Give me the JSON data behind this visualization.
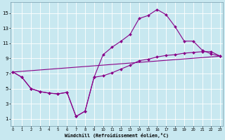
{
  "xlabel": "Windchill (Refroidissement éolien,°C)",
  "background_color": "#c8e8f0",
  "line_color": "#880088",
  "xlim": [
    -0.3,
    23.3
  ],
  "ylim": [
    0,
    16.5
  ],
  "xticks": [
    0,
    1,
    2,
    3,
    4,
    5,
    6,
    7,
    8,
    9,
    10,
    11,
    12,
    13,
    14,
    15,
    16,
    17,
    18,
    19,
    20,
    21,
    22,
    23
  ],
  "yticks": [
    1,
    3,
    5,
    7,
    9,
    11,
    13,
    15
  ],
  "line1_x": [
    0,
    1,
    2,
    3,
    4,
    5,
    6,
    7,
    8,
    9,
    10,
    11,
    12,
    13,
    14,
    15,
    16,
    17,
    18,
    19,
    20,
    21,
    22,
    23
  ],
  "line1_y": [
    7.2,
    6.5,
    5.0,
    4.6,
    4.4,
    4.3,
    4.5,
    1.3,
    2.0,
    6.5,
    9.5,
    10.5,
    11.3,
    12.2,
    14.3,
    14.7,
    15.5,
    14.8,
    13.2,
    11.3,
    11.3,
    10.1,
    9.6,
    9.3
  ],
  "line2_x": [
    0,
    1,
    2,
    3,
    4,
    5,
    6,
    7,
    8,
    9,
    10,
    11,
    12,
    13,
    14,
    15,
    16,
    17,
    18,
    19,
    20,
    21,
    22,
    23
  ],
  "line2_y": [
    7.2,
    6.5,
    5.0,
    4.6,
    4.4,
    4.3,
    4.5,
    1.3,
    2.0,
    6.5,
    6.7,
    7.1,
    7.6,
    8.1,
    8.7,
    8.9,
    9.2,
    9.4,
    9.5,
    9.7,
    9.8,
    9.9,
    9.9,
    9.3
  ],
  "line3_x": [
    0,
    23
  ],
  "line3_y": [
    7.2,
    9.3
  ],
  "grid_color": "#b0d8e4",
  "spine_color": "#7799aa"
}
